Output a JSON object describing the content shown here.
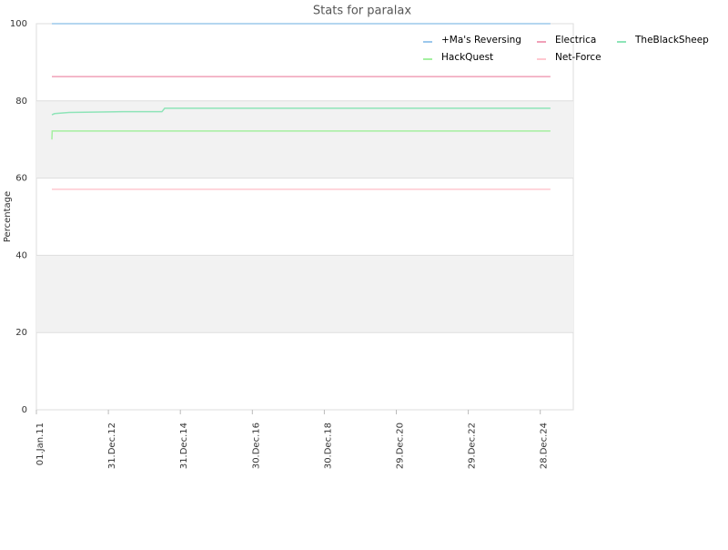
{
  "chart_data": {
    "type": "line",
    "title": "Stats for paralax",
    "y_label": "Percentage",
    "xlim": [
      "2011-01-01",
      "2025-11-28"
    ],
    "xticks": [
      {
        "value": "2011-01-01",
        "label": "01.Jan.11"
      },
      {
        "value": "2012-12-31",
        "label": "31.Dec.12"
      },
      {
        "value": "2014-12-31",
        "label": "31.Dec.14"
      },
      {
        "value": "2016-12-30",
        "label": "30.Dec.16"
      },
      {
        "value": "2018-12-30",
        "label": "30.Dec.18"
      },
      {
        "value": "2020-12-29",
        "label": "29.Dec.20"
      },
      {
        "value": "2022-12-29",
        "label": "29.Dec.22"
      },
      {
        "value": "2024-12-28",
        "label": "28.Dec.24"
      }
    ],
    "ylim": [
      0,
      100
    ],
    "yticks": [
      0,
      20,
      40,
      60,
      80,
      100
    ],
    "grid": true,
    "legend": "top-right",
    "series": [
      {
        "name": "+Ma's Reversing",
        "color": "#9cc8ec",
        "x": [
          "2011-06-07",
          "2025-04-10"
        ],
        "values": [
          100,
          100
        ]
      },
      {
        "name": "Electrica",
        "color": "#f0a0b8",
        "x": [
          "2011-06-07",
          "2025-04-10"
        ],
        "values": [
          86.3,
          86.3
        ]
      },
      {
        "name": "TheBlackSheep",
        "color": "#8ee4b8",
        "x": [
          "2011-06-07",
          "2011-07-04",
          "2011-11-29",
          "2013-06-05",
          "2014-06-27",
          "2014-07-25",
          "2025-04-10"
        ],
        "values": [
          76.4,
          76.7,
          77,
          77.2,
          77.2,
          78.1,
          78.1
        ]
      },
      {
        "name": "HackQuest",
        "color": "#a4f0a0",
        "x": [
          "2011-06-07",
          "2011-06-10",
          "2025-04-10"
        ],
        "values": [
          70,
          72.2,
          72.2
        ]
      },
      {
        "name": "Net-Force",
        "color": "#ffc8d0",
        "x": [
          "2011-06-07",
          "2025-04-10"
        ],
        "values": [
          57.1,
          57.1
        ]
      }
    ]
  }
}
